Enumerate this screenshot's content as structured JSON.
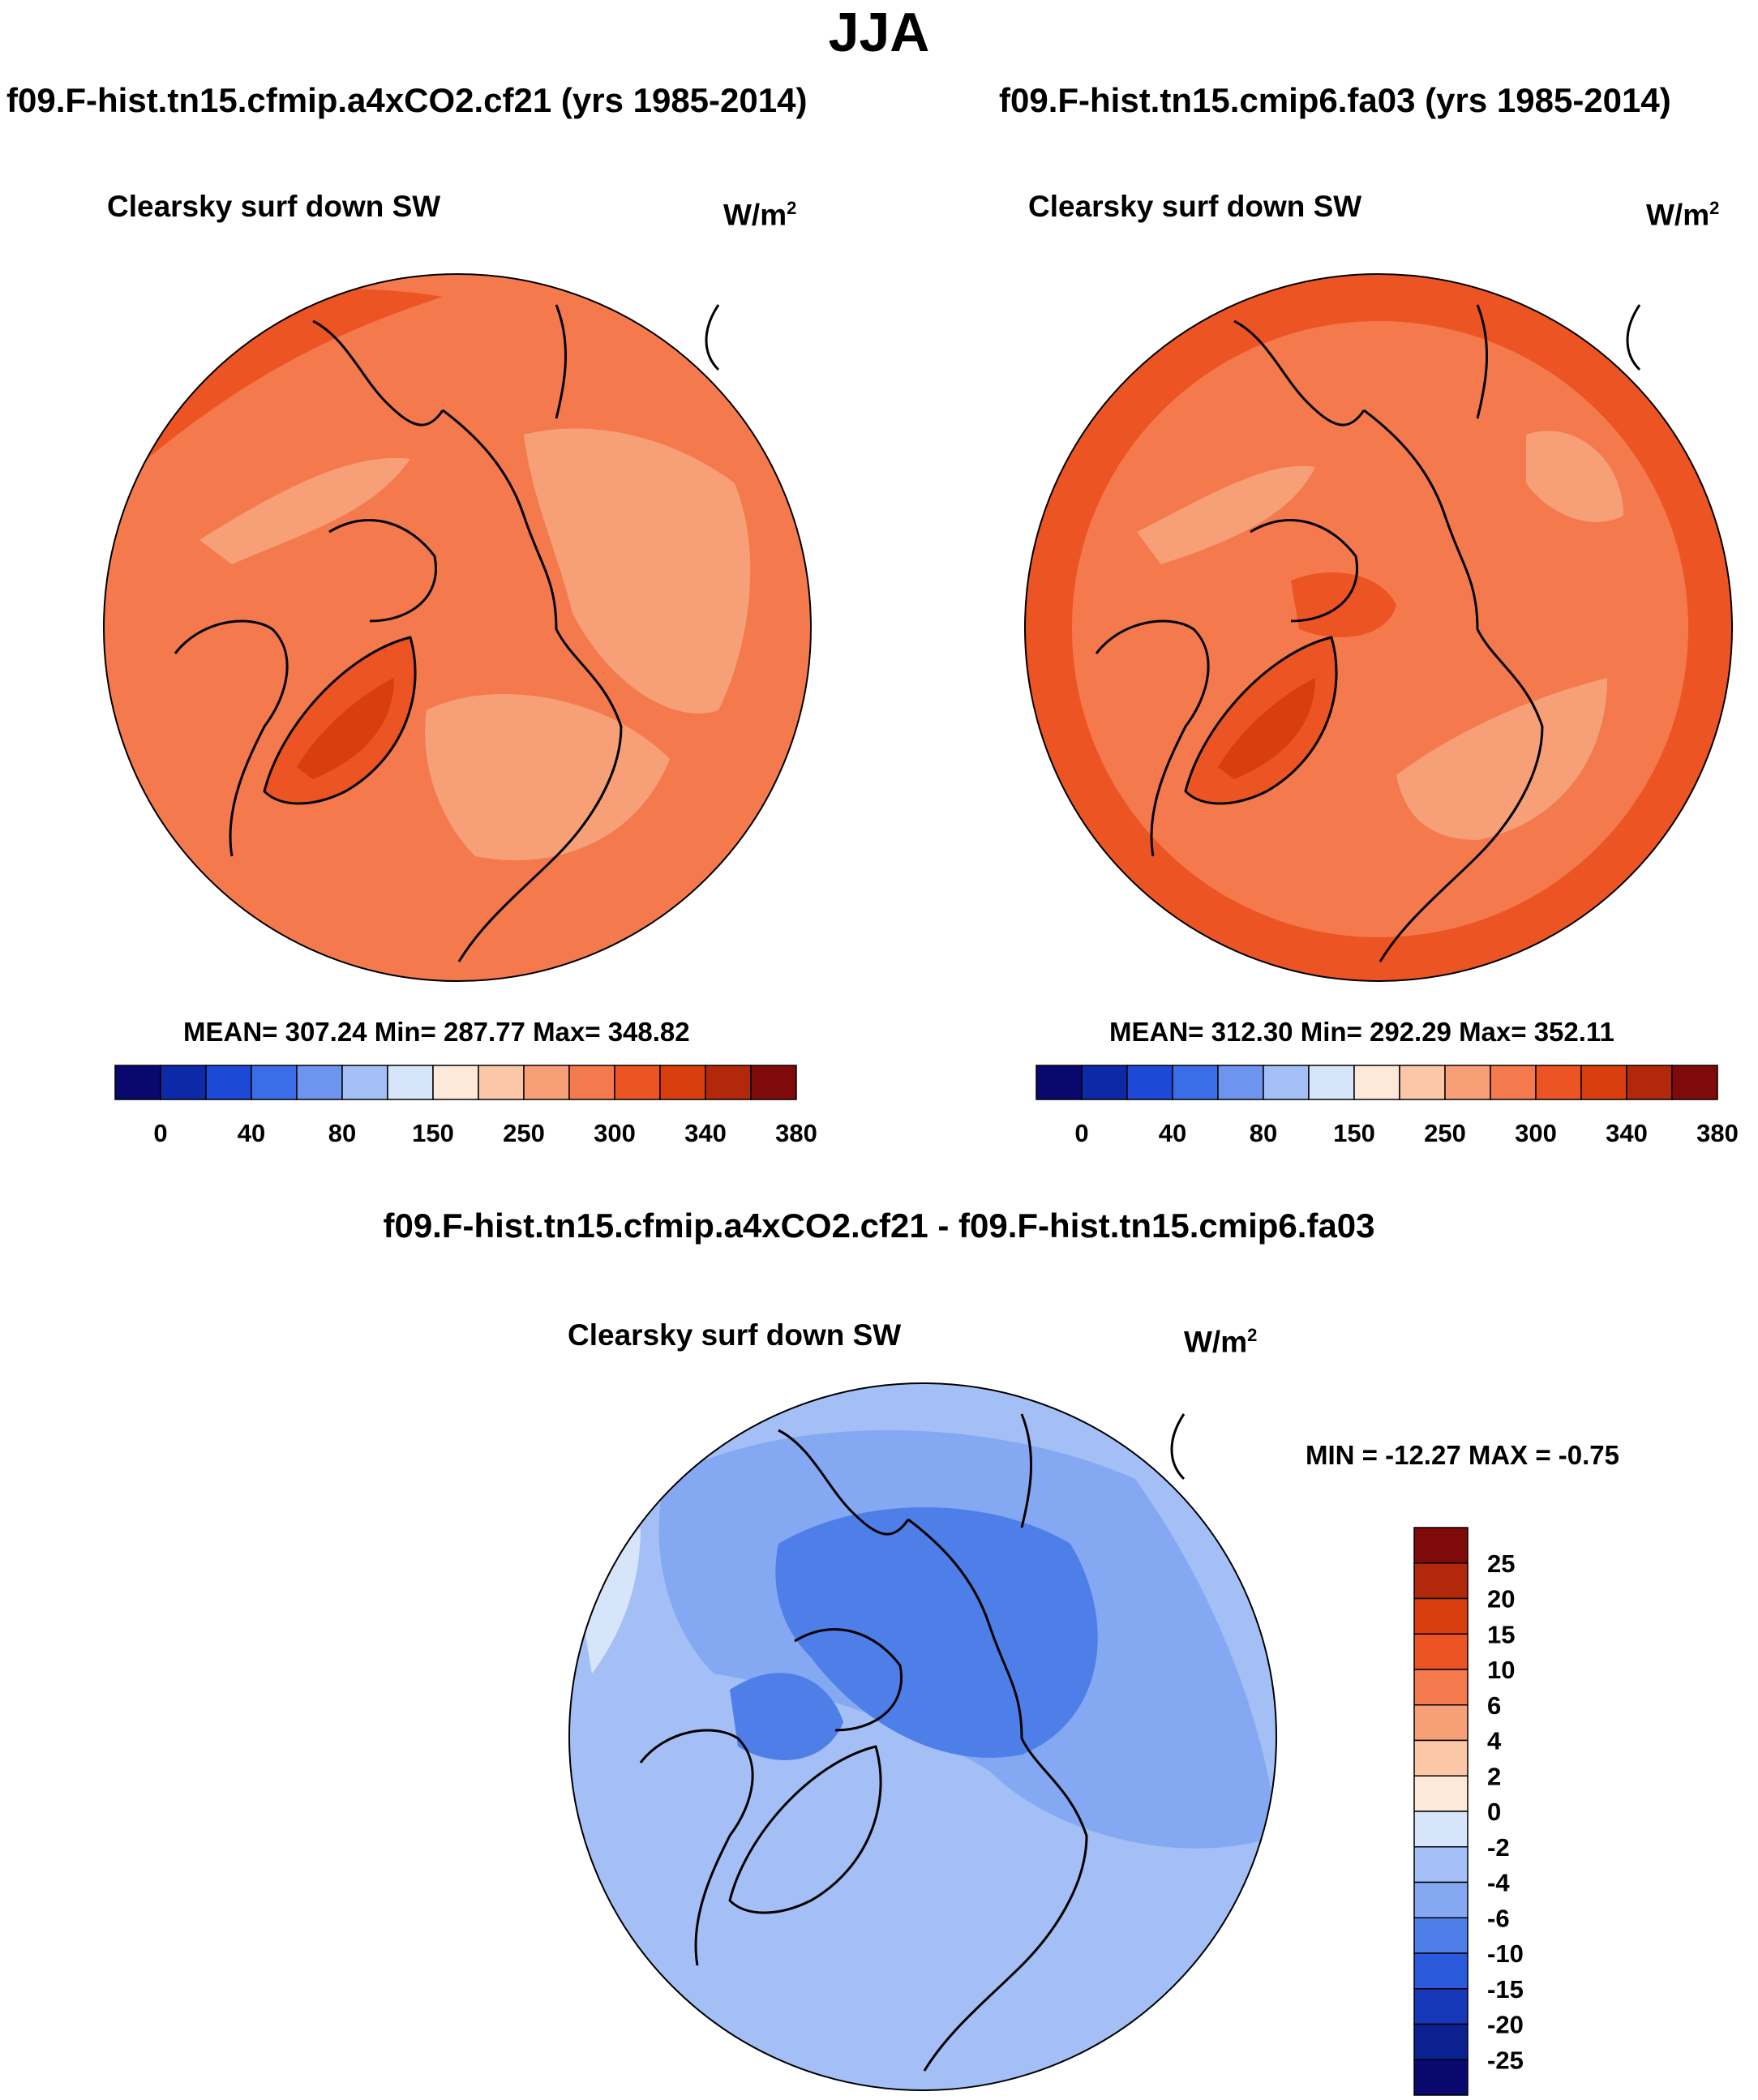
{
  "page": {
    "title": "JJA",
    "diff_title": "f09.F-hist.tn15.cfmip.a4xCO2.cf21 - f09.F-hist.tn15.cmip6.fa03"
  },
  "colors": {
    "coast": "#000000",
    "abs_levels": [
      "#08086e",
      "#0c29a8",
      "#1c4ad6",
      "#3a6ee8",
      "#6d95f0",
      "#a3bff5",
      "#d6e5fa",
      "#fde9da",
      "#fbc7a6",
      "#f7a077",
      "#f47a4e",
      "#ec5424",
      "#d83e0e",
      "#b1290a",
      "#7e0a0a"
    ],
    "diff_levels": [
      "#7e0a0a",
      "#b1290a",
      "#d83e0e",
      "#ec5424",
      "#f47a4e",
      "#f7a077",
      "#fbc7a6",
      "#fde9da",
      "#d6e5fa",
      "#a3bff5",
      "#84a8f2",
      "#4e7ee8",
      "#2a59dc",
      "#1638b8",
      "#0c2190",
      "#08086e"
    ]
  },
  "chart_data": [
    {
      "type": "heatmap",
      "title": "f09.F-hist.tn15.cfmip.a4xCO2.cf21 (yrs 1985-2014)",
      "variable": "Clearsky surf down SW",
      "units": "W/m",
      "units_sup": "2",
      "stats": "MEAN= 307.24  Min= 287.77  Max= 348.82",
      "mean": 307.24,
      "min": 287.77,
      "max": 348.82,
      "colorbar_ticks": [
        "0",
        "40",
        "80",
        "150",
        "250",
        "300",
        "340",
        "380"
      ],
      "dominant_level": 10
    },
    {
      "type": "heatmap",
      "title": "f09.F-hist.tn15.cmip6.fa03 (yrs 1985-2014)",
      "variable": "Clearsky surf down SW",
      "units": "W/m",
      "units_sup": "2",
      "stats": "MEAN= 312.30  Min= 292.29  Max= 352.11",
      "mean": 312.3,
      "min": 292.29,
      "max": 352.11,
      "colorbar_ticks": [
        "0",
        "40",
        "80",
        "150",
        "250",
        "300",
        "340",
        "380"
      ],
      "dominant_level": 10
    },
    {
      "type": "heatmap",
      "title": "f09.F-hist.tn15.cfmip.a4xCO2.cf21 - f09.F-hist.tn15.cmip6.fa03",
      "variable": "Clearsky surf down SW",
      "units": "W/m",
      "units_sup": "2",
      "stats": "MIN = -12.27 MAX =  -0.75",
      "min": -12.27,
      "max": -0.75,
      "colorbar_ticks": [
        "25",
        "20",
        "15",
        "10",
        "6",
        "4",
        "2",
        "0",
        "-2",
        "-4",
        "-6",
        "-10",
        "-15",
        "-20",
        "-25"
      ]
    }
  ]
}
